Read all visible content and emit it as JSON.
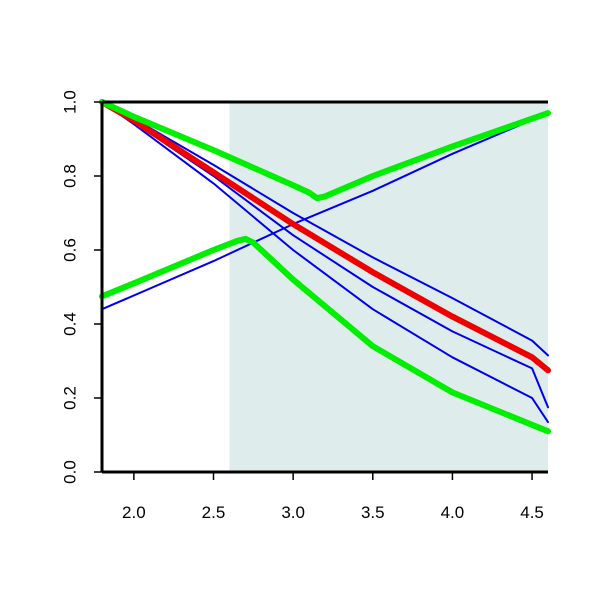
{
  "chart_data": {
    "type": "line",
    "title": "",
    "xlabel": "",
    "ylabel": "",
    "xlim": [
      1.8,
      4.6
    ],
    "ylim": [
      0.0,
      1.0
    ],
    "x_ticks": [
      "2.0",
      "2.5",
      "3.0",
      "3.5",
      "4.0",
      "4.5"
    ],
    "y_ticks": [
      "0.0",
      "0.2",
      "0.4",
      "0.6",
      "0.8",
      "1.0"
    ],
    "shaded_region": {
      "x_from": 2.6,
      "x_to": 4.6,
      "color": "#deecec"
    },
    "grid": false,
    "legend": "none",
    "series": [
      {
        "color": "#0000ee",
        "width": "thin",
        "x": [
          1.8,
          2.0,
          2.5,
          3.0,
          3.5,
          4.0,
          4.5,
          4.6
        ],
        "values": [
          1.0,
          0.955,
          0.83,
          0.7,
          0.58,
          0.47,
          0.355,
          0.315
        ]
      },
      {
        "color": "#0000ee",
        "width": "thin",
        "x": [
          1.8,
          2.0,
          2.5,
          3.0,
          3.5,
          4.0,
          4.5,
          4.6
        ],
        "values": [
          1.0,
          0.945,
          0.8,
          0.64,
          0.5,
          0.38,
          0.28,
          0.175
        ]
      },
      {
        "color": "#0000ee",
        "width": "thin",
        "x": [
          1.8,
          2.0,
          2.5,
          3.0,
          3.5,
          4.0,
          4.5,
          4.6
        ],
        "values": [
          1.0,
          0.94,
          0.78,
          0.6,
          0.44,
          0.31,
          0.2,
          0.135
        ]
      },
      {
        "color": "#0000ee",
        "width": "thin",
        "x": [
          1.8,
          2.5,
          3.0,
          3.5,
          4.0,
          4.6
        ],
        "values": [
          0.44,
          0.57,
          0.67,
          0.76,
          0.86,
          0.97
        ]
      },
      {
        "color": "#ee0000",
        "width": "thick",
        "x": [
          1.8,
          2.0,
          2.5,
          3.0,
          3.5,
          4.0,
          4.5,
          4.6
        ],
        "values": [
          1.0,
          0.95,
          0.81,
          0.67,
          0.54,
          0.42,
          0.31,
          0.275
        ]
      },
      {
        "color": "#00ee00",
        "width": "thick",
        "x": [
          1.8,
          2.0,
          2.5,
          3.0,
          3.1,
          3.15,
          3.2,
          3.5,
          4.0,
          4.6
        ],
        "values": [
          1.0,
          0.96,
          0.87,
          0.775,
          0.755,
          0.74,
          0.745,
          0.8,
          0.88,
          0.97
        ]
      },
      {
        "color": "#00ee00",
        "width": "thick",
        "x": [
          1.8,
          2.0,
          2.5,
          2.65,
          2.7,
          2.75,
          3.0,
          3.5,
          4.0,
          4.6
        ],
        "values": [
          0.475,
          0.51,
          0.6,
          0.625,
          0.63,
          0.62,
          0.52,
          0.34,
          0.215,
          0.11
        ]
      }
    ]
  }
}
